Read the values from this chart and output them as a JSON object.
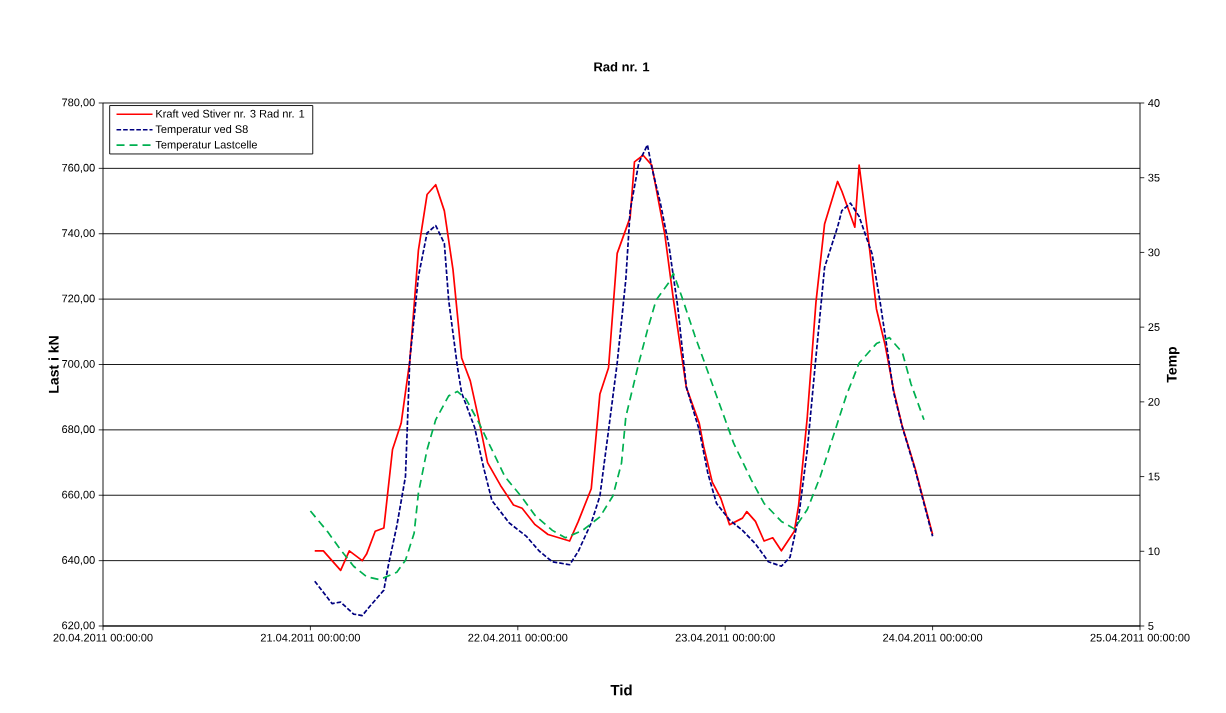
{
  "chart_data": {
    "type": "line",
    "title": "Rad nr. 1",
    "xlabel": "Tid",
    "ylabel": "Last i kN",
    "y2label": "Temp",
    "xlim": [
      "2011-04-20T00:00",
      "2011-04-25T00:00"
    ],
    "xticks": [
      {
        "value": "2011-04-20T00:00",
        "label": "20.04.2011 00:00:00"
      },
      {
        "value": "2011-04-21T00:00",
        "label": "21.04.2011 00:00:00"
      },
      {
        "value": "2011-04-22T00:00",
        "label": "22.04.2011 00:00:00"
      },
      {
        "value": "2011-04-23T00:00",
        "label": "23.04.2011 00:00:00"
      },
      {
        "value": "2011-04-24T00:00",
        "label": "24.04.2011 00:00:00"
      },
      {
        "value": "2011-04-25T00:00",
        "label": "25.04.2011 00:00:00"
      }
    ],
    "ylim": [
      620,
      780
    ],
    "yticks": [
      {
        "value": 620,
        "label": "620,00"
      },
      {
        "value": 640,
        "label": "640,00"
      },
      {
        "value": 660,
        "label": "660,00"
      },
      {
        "value": 680,
        "label": "680,00"
      },
      {
        "value": 700,
        "label": "700,00"
      },
      {
        "value": 720,
        "label": "720,00"
      },
      {
        "value": 740,
        "label": "740,00"
      },
      {
        "value": 760,
        "label": "760,00"
      },
      {
        "value": 780,
        "label": "780,00"
      }
    ],
    "y2lim": [
      5,
      40
    ],
    "y2ticks": [
      5,
      10,
      15,
      20,
      25,
      30,
      35,
      40
    ],
    "grid": "y",
    "legend": "top left",
    "series": [
      {
        "name": "Kraft ved Stiver nr. 3 Rad nr. 1",
        "color": "#ff0000",
        "line_style": "solid",
        "axis": "y",
        "x": [
          "2011-04-21T00:30",
          "2011-04-21T01:30",
          "2011-04-21T03:30",
          "2011-04-21T04:30",
          "2011-04-21T06:00",
          "2011-04-21T06:30",
          "2011-04-21T07:30",
          "2011-04-21T08:30",
          "2011-04-21T09:30",
          "2011-04-21T10:30",
          "2011-04-21T11:30",
          "2011-04-21T12:30",
          "2011-04-21T13:30",
          "2011-04-21T14:30",
          "2011-04-21T15:30",
          "2011-04-21T16:30",
          "2011-04-21T17:30",
          "2011-04-21T18:30",
          "2011-04-21T19:30",
          "2011-04-21T20:30",
          "2011-04-21T22:00",
          "2011-04-21T23:30",
          "2011-04-22T00:30",
          "2011-04-22T02:00",
          "2011-04-22T03:30",
          "2011-04-22T06:00",
          "2011-04-22T07:00",
          "2011-04-22T08:30",
          "2011-04-22T09:30",
          "2011-04-22T10:30",
          "2011-04-22T11:30",
          "2011-04-22T13:00",
          "2011-04-22T13:30",
          "2011-04-22T14:30",
          "2011-04-22T15:30",
          "2011-04-22T17:00",
          "2011-04-22T18:00",
          "2011-04-22T19:30",
          "2011-04-22T21:00",
          "2011-04-22T21:30",
          "2011-04-22T22:30",
          "2011-04-22T23:30",
          "2011-04-23T00:30",
          "2011-04-23T02:00",
          "2011-04-23T02:30",
          "2011-04-23T03:30",
          "2011-04-23T04:30",
          "2011-04-23T05:30",
          "2011-04-23T06:30",
          "2011-04-23T08:00",
          "2011-04-23T08:30",
          "2011-04-23T09:30",
          "2011-04-23T10:30",
          "2011-04-23T11:30",
          "2011-04-23T13:00",
          "2011-04-23T13:30",
          "2011-04-23T15:00",
          "2011-04-23T15:30",
          "2011-04-23T16:30",
          "2011-04-23T17:30",
          "2011-04-23T18:30",
          "2011-04-23T19:30",
          "2011-04-23T20:30",
          "2011-04-23T22:00",
          "2011-04-24T00:00"
        ],
        "values": [
          643,
          643,
          637,
          643,
          640,
          642,
          649,
          650,
          674,
          682,
          701,
          735,
          752,
          755,
          747,
          729,
          702,
          695,
          683,
          670,
          663,
          657,
          656,
          651,
          648,
          646,
          652,
          662,
          691,
          699,
          734,
          745,
          762,
          764,
          761,
          740,
          720,
          693,
          682,
          675,
          664,
          659,
          651,
          653,
          655,
          652,
          646,
          647,
          643,
          649,
          657,
          684,
          719,
          743,
          756,
          753,
          742,
          761,
          740,
          717,
          706,
          692,
          681,
          668,
          648
        ]
      },
      {
        "name": "Temperatur ved S8",
        "color": "#000080",
        "line_style": "dotted",
        "axis": "y2",
        "x": [
          "2011-04-21T00:30",
          "2011-04-21T02:30",
          "2011-04-21T03:30",
          "2011-04-21T05:00",
          "2011-04-21T06:00",
          "2011-04-21T07:00",
          "2011-04-21T08:30",
          "2011-04-21T09:00",
          "2011-04-21T10:00",
          "2011-04-21T11:00",
          "2011-04-21T11:30",
          "2011-04-21T12:30",
          "2011-04-21T13:30",
          "2011-04-21T14:30",
          "2011-04-21T15:30",
          "2011-04-21T16:00",
          "2011-04-21T17:00",
          "2011-04-21T17:30",
          "2011-04-21T19:00",
          "2011-04-21T20:00",
          "2011-04-21T21:00",
          "2011-04-21T23:00",
          "2011-04-22T01:00",
          "2011-04-22T02:30",
          "2011-04-22T04:00",
          "2011-04-22T06:00",
          "2011-04-22T07:00",
          "2011-04-22T08:30",
          "2011-04-22T09:30",
          "2011-04-22T10:30",
          "2011-04-22T11:30",
          "2011-04-22T12:30",
          "2011-04-22T13:00",
          "2011-04-22T14:00",
          "2011-04-22T15:00",
          "2011-04-22T15:30",
          "2011-04-22T16:30",
          "2011-04-22T17:30",
          "2011-04-22T18:30",
          "2011-04-22T19:30",
          "2011-04-22T21:00",
          "2011-04-22T22:00",
          "2011-04-22T23:00",
          "2011-04-23T00:30",
          "2011-04-23T02:00",
          "2011-04-23T03:30",
          "2011-04-23T05:00",
          "2011-04-23T06:30",
          "2011-04-23T07:30",
          "2011-04-23T08:30",
          "2011-04-23T09:30",
          "2011-04-23T10:30",
          "2011-04-23T11:30",
          "2011-04-23T13:00",
          "2011-04-23T13:30",
          "2011-04-23T14:30",
          "2011-04-23T15:30",
          "2011-04-23T17:00",
          "2011-04-23T18:00",
          "2011-04-23T19:30",
          "2011-04-23T20:30",
          "2011-04-23T22:00",
          "2011-04-24T00:00"
        ],
        "values": [
          8.0,
          6.5,
          6.6,
          5.8,
          5.7,
          6.4,
          7.4,
          9.0,
          11.7,
          15.0,
          22.8,
          28.4,
          31.3,
          31.8,
          30.6,
          26.8,
          22.4,
          20.6,
          18.3,
          15.7,
          13.4,
          11.9,
          11.0,
          10.0,
          9.3,
          9.1,
          10.0,
          11.9,
          13.7,
          18.1,
          22.6,
          28.2,
          32.8,
          36.0,
          37.2,
          35.7,
          33.3,
          30.4,
          26.4,
          21.0,
          18.1,
          15.2,
          13.2,
          12.1,
          11.4,
          10.5,
          9.3,
          9.0,
          9.6,
          12.3,
          16.8,
          23.0,
          29.0,
          31.7,
          32.8,
          33.3,
          32.4,
          29.9,
          26.4,
          20.6,
          18.3,
          15.4,
          11.0
        ]
      },
      {
        "name": "Temperatur Lastcelle",
        "color": "#00b050",
        "line_style": "dashed",
        "axis": "y2",
        "x": [
          "2011-04-21T00:00",
          "2011-04-21T02:00",
          "2011-04-21T03:30",
          "2011-04-21T05:00",
          "2011-04-21T06:30",
          "2011-04-21T08:00",
          "2011-04-21T10:00",
          "2011-04-21T11:00",
          "2011-04-21T12:00",
          "2011-04-21T12:30",
          "2011-04-21T13:30",
          "2011-04-21T14:30",
          "2011-04-21T16:00",
          "2011-04-21T17:00",
          "2011-04-21T18:00",
          "2011-04-21T19:30",
          "2011-04-21T21:00",
          "2011-04-21T22:30",
          "2011-04-22T00:30",
          "2011-04-22T02:00",
          "2011-04-22T04:00",
          "2011-04-22T05:30",
          "2011-04-22T07:30",
          "2011-04-22T09:30",
          "2011-04-22T11:00",
          "2011-04-22T12:00",
          "2011-04-22T12:30",
          "2011-04-22T14:00",
          "2011-04-22T15:00",
          "2011-04-22T16:00",
          "2011-04-22T17:30",
          "2011-04-22T18:00",
          "2011-04-22T19:00",
          "2011-04-22T20:30",
          "2011-04-22T22:30",
          "2011-04-23T00:00",
          "2011-04-23T01:00",
          "2011-04-23T03:00",
          "2011-04-23T04:30",
          "2011-04-23T06:30",
          "2011-04-23T08:00",
          "2011-04-23T09:30",
          "2011-04-23T11:00",
          "2011-04-23T12:30",
          "2011-04-23T14:00",
          "2011-04-23T15:30",
          "2011-04-23T17:30",
          "2011-04-23T19:00",
          "2011-04-23T20:30",
          "2011-04-23T21:30",
          "2011-04-23T23:00"
        ],
        "values": [
          12.7,
          11.3,
          10.1,
          9.0,
          8.3,
          8.1,
          8.6,
          9.4,
          11.2,
          13.9,
          16.8,
          18.8,
          20.4,
          20.7,
          20.2,
          18.6,
          16.8,
          15.0,
          13.6,
          12.4,
          11.4,
          10.9,
          11.4,
          12.3,
          13.7,
          15.9,
          19.0,
          22.6,
          24.8,
          26.8,
          28.0,
          28.6,
          27.0,
          24.4,
          21.2,
          18.8,
          17.2,
          14.8,
          13.2,
          12.0,
          11.5,
          12.8,
          15.0,
          17.7,
          20.4,
          22.6,
          23.9,
          24.3,
          23.3,
          21.2,
          18.8
        ]
      }
    ]
  }
}
